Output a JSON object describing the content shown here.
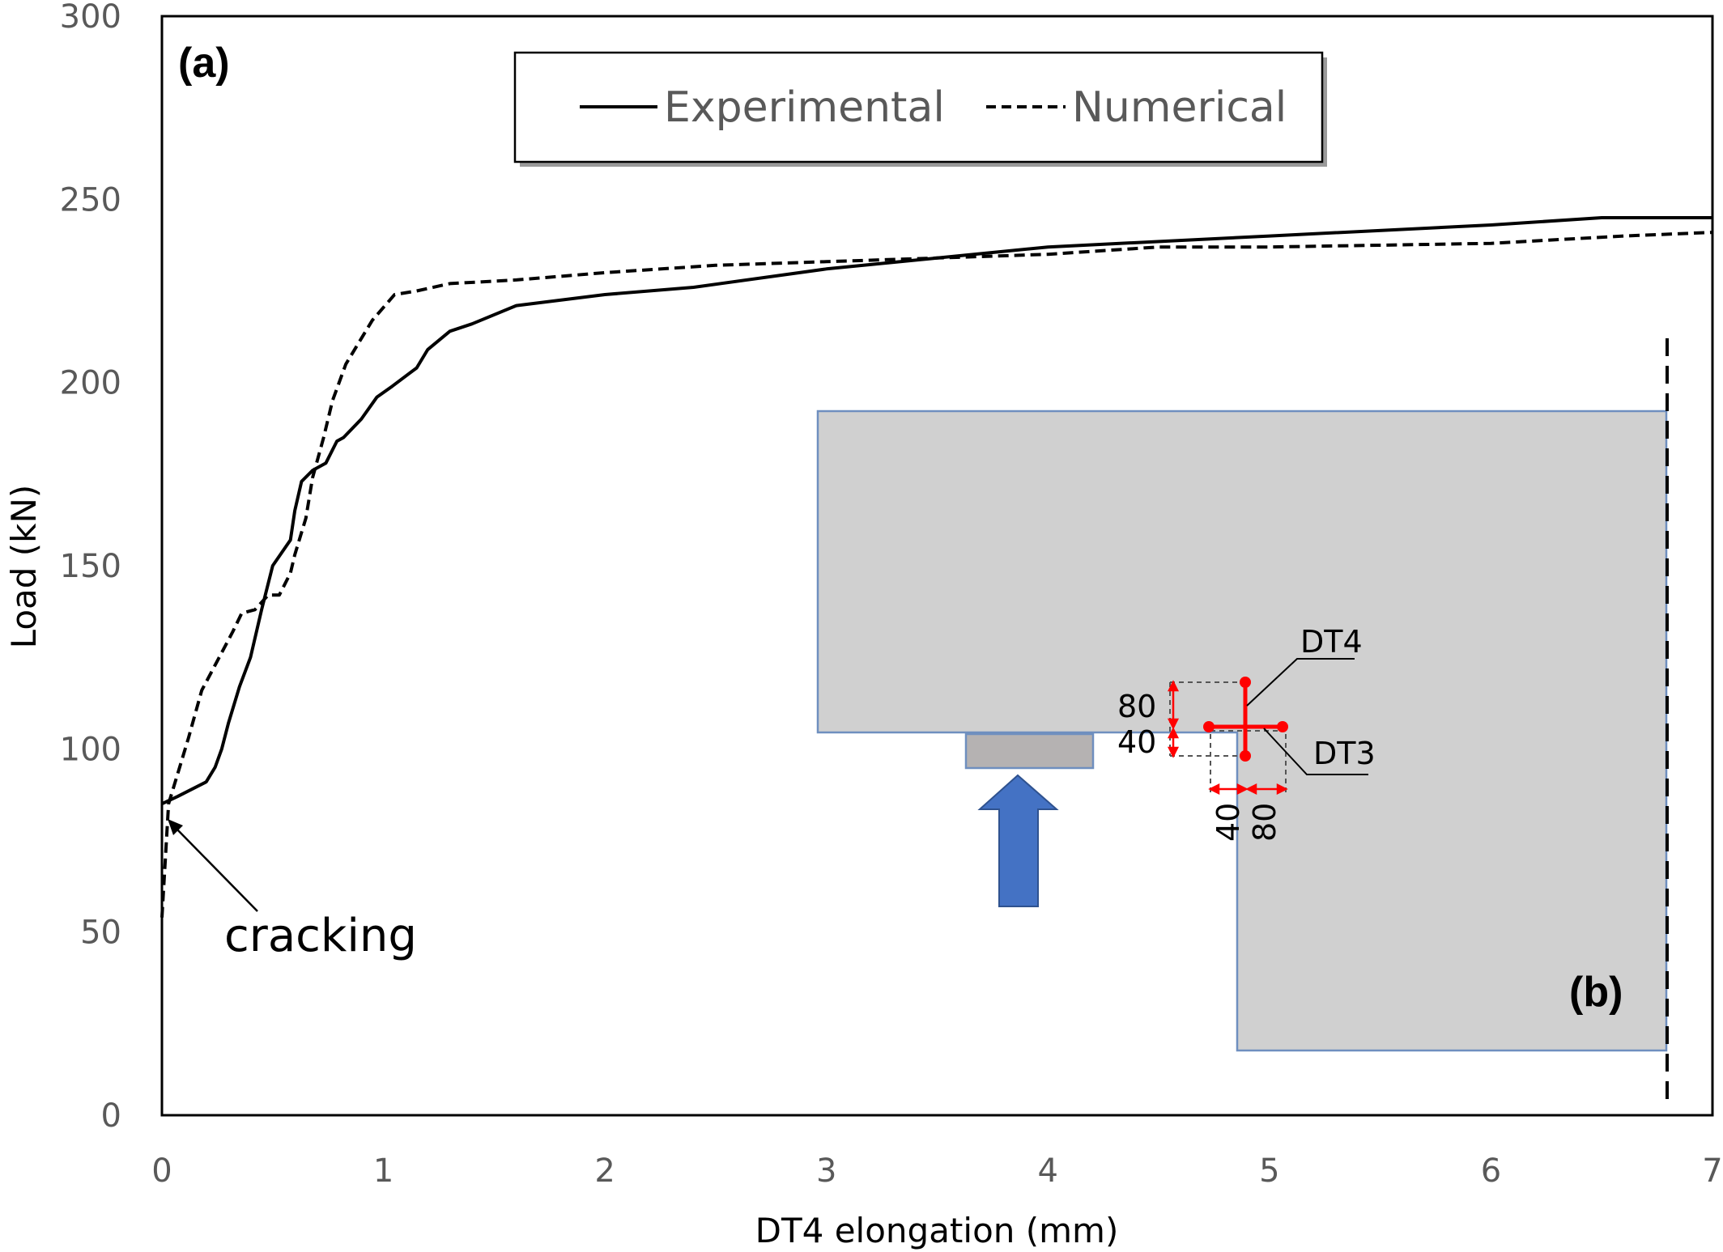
{
  "chart_data": {
    "type": "line",
    "xlabel": "DT4 elongation (mm)",
    "ylabel": "Load  (kN)",
    "xlim": [
      0,
      7
    ],
    "ylim": [
      0,
      300
    ],
    "xticks": [
      "0",
      "1",
      "2",
      "3",
      "4",
      "5",
      "6",
      "7"
    ],
    "yticks": [
      "0",
      "50",
      "100",
      "150",
      "200",
      "250",
      "300"
    ],
    "grid": false,
    "legend_position": "top-center",
    "series": [
      {
        "name": "Experimental",
        "style": "solid",
        "color": "#000000",
        "x": [
          0,
          0.07,
          0.2,
          0.24,
          0.27,
          0.3,
          0.35,
          0.4,
          0.45,
          0.5,
          0.58,
          0.6,
          0.63,
          0.68,
          0.74,
          0.79,
          0.82,
          0.9,
          0.97,
          1.04,
          1.15,
          1.2,
          1.3,
          1.4,
          1.6,
          2.0,
          2.4,
          3.0,
          3.5,
          4.0,
          5.0,
          6.0,
          6.5,
          7.0
        ],
        "y": [
          85,
          87,
          91,
          95,
          100,
          107,
          117,
          125,
          138,
          150,
          157,
          165,
          173,
          176,
          178,
          184,
          185,
          190,
          196,
          199,
          204,
          209,
          214,
          216,
          221,
          224,
          226,
          231,
          234,
          237,
          240,
          243,
          245,
          245
        ]
      },
      {
        "name": "Numerical",
        "style": "dashed",
        "color": "#000000",
        "x": [
          0,
          0.03,
          0.08,
          0.12,
          0.18,
          0.25,
          0.32,
          0.36,
          0.42,
          0.48,
          0.53,
          0.58,
          0.6,
          0.65,
          0.68,
          0.73,
          0.77,
          0.83,
          0.88,
          0.95,
          1.05,
          1.15,
          1.3,
          1.6,
          2.0,
          2.5,
          3.0,
          3.5,
          4.0,
          4.5,
          5.0,
          6.0,
          6.6,
          7.0
        ],
        "y": [
          54,
          85,
          95,
          103,
          116,
          124,
          132,
          137,
          138,
          142,
          142,
          148,
          153,
          163,
          174,
          185,
          195,
          205,
          210,
          217,
          224,
          225,
          227,
          228,
          230,
          232,
          233,
          234,
          235,
          237,
          237,
          238,
          240,
          241
        ]
      }
    ],
    "annotations": [
      {
        "text": "(a)",
        "role": "panel-label"
      },
      {
        "text": "cracking",
        "role": "callout",
        "points_to": [
          0,
          85
        ]
      },
      {
        "text": "(b)",
        "role": "inset-label"
      }
    ]
  },
  "inset": {
    "labels": {
      "dt4": "DT4",
      "dt3": "DT3",
      "dim_v80": "80",
      "dim_v40": "40",
      "dim_h40": "40",
      "dim_h80": "80"
    },
    "colors": {
      "body": "#d0d0d0",
      "edge": "#6f8fbf",
      "bearing": "#b5b2b2",
      "arrow": "#4472c4",
      "gauge": "#ff0000"
    },
    "icon": "upward-load-arrow-icon"
  }
}
